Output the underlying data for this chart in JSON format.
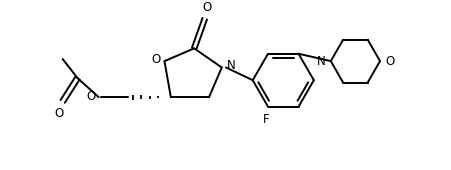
{
  "bg_color": "#ffffff",
  "line_color": "#000000",
  "line_width": 1.4,
  "figsize": [
    4.52,
    1.7
  ],
  "dpi": 100,
  "xlim": [
    0,
    10
  ],
  "ylim": [
    0,
    3.75
  ]
}
